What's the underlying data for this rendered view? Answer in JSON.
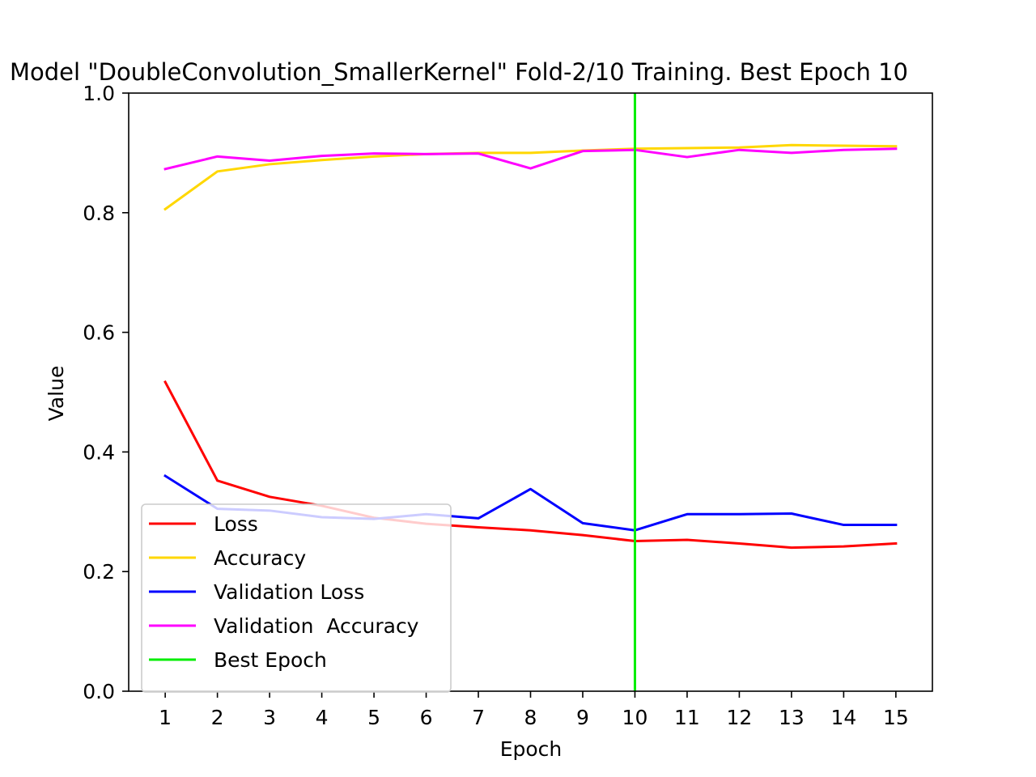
{
  "chart_data": {
    "type": "line",
    "title": "Model \"DoubleConvolution_SmallerKernel\" Fold-2/10 Training. Best Epoch 10",
    "xlabel": "Epoch",
    "ylabel": "Value",
    "x": [
      1,
      2,
      3,
      4,
      5,
      6,
      7,
      8,
      9,
      10,
      11,
      12,
      13,
      14,
      15
    ],
    "xlim": [
      0.3,
      15.7
    ],
    "ylim": [
      0.0,
      1.0
    ],
    "x_ticks": [
      "1",
      "2",
      "3",
      "4",
      "5",
      "6",
      "7",
      "8",
      "9",
      "10",
      "11",
      "12",
      "13",
      "14",
      "15"
    ],
    "y_ticks": [
      "0.0",
      "0.2",
      "0.4",
      "0.6",
      "0.8",
      "1.0"
    ],
    "grid": false,
    "legend_position": "lower-left",
    "series": [
      {
        "name": "Loss",
        "color": "#ff0000",
        "values": [
          0.517,
          0.352,
          0.325,
          0.31,
          0.29,
          0.28,
          0.274,
          0.269,
          0.261,
          0.251,
          0.253,
          0.247,
          0.24,
          0.242,
          0.247
        ]
      },
      {
        "name": "Accuracy",
        "color": "#ffd700",
        "values": [
          0.806,
          0.869,
          0.881,
          0.888,
          0.894,
          0.898,
          0.9,
          0.9,
          0.904,
          0.907,
          0.908,
          0.909,
          0.913,
          0.912,
          0.911
        ]
      },
      {
        "name": "Validation Loss",
        "color": "#0000ff",
        "values": [
          0.36,
          0.305,
          0.302,
          0.291,
          0.288,
          0.296,
          0.289,
          0.338,
          0.281,
          0.269,
          0.296,
          0.296,
          0.297,
          0.278,
          0.278
        ]
      },
      {
        "name": "Validation  Accuracy",
        "color": "#ff00ff",
        "values": [
          0.873,
          0.894,
          0.887,
          0.895,
          0.899,
          0.898,
          0.899,
          0.874,
          0.903,
          0.905,
          0.893,
          0.905,
          0.9,
          0.905,
          0.907
        ]
      }
    ],
    "best_epoch": {
      "name": "Best Epoch",
      "x": 10,
      "color": "#00ee00"
    }
  }
}
